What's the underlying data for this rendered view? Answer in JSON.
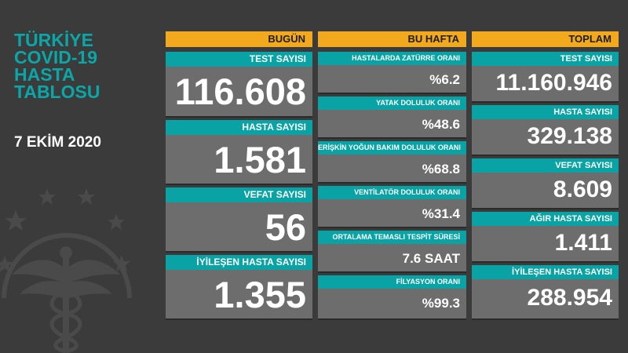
{
  "title_lines": [
    "TÜRKİYE",
    "COVID-19",
    "HASTA",
    "TABLOSU"
  ],
  "date": "7 EKİM 2020",
  "columns": {
    "today": {
      "header": "BUGÜN",
      "items": [
        {
          "label": "TEST SAYISI",
          "value": "116.608"
        },
        {
          "label": "HASTA SAYISI",
          "value": "1.581"
        },
        {
          "label": "VEFAT SAYISI",
          "value": "56"
        },
        {
          "label": "İYİLEŞEN HASTA SAYISI",
          "value": "1.355"
        }
      ]
    },
    "week": {
      "header": "BU HAFTA",
      "items": [
        {
          "label": "HASTALARDA ZATÜRRE ORANI",
          "value": "%6.2"
        },
        {
          "label": "YATAK DOLULUK ORANI",
          "value": "%48.6"
        },
        {
          "label": "ERİŞKİN YOĞUN BAKIM DOLULUK ORANI",
          "value": "%68.8"
        },
        {
          "label": "VENTİLATÖR DOLULUK ORANI",
          "value": "%31.4"
        },
        {
          "label": "ORTALAMA TEMASLI TESPİT SÜRESİ",
          "value": "7.6 SAAT"
        },
        {
          "label": "FİLYASYON ORANI",
          "value": "%99.3"
        }
      ]
    },
    "total": {
      "header": "TOPLAM",
      "items": [
        {
          "label": "TEST SAYISI",
          "value": "11.160.946"
        },
        {
          "label": "HASTA SAYISI",
          "value": "329.138"
        },
        {
          "label": "VEFAT SAYISI",
          "value": "8.609"
        },
        {
          "label": "AĞIR HASTA SAYISI",
          "value": "1.411"
        },
        {
          "label": "İYİLEŞEN HASTA SAYISI",
          "value": "288.954"
        }
      ]
    }
  },
  "colors": {
    "header_bg": "#f2a91d",
    "label_bg": "#0aa3a5",
    "card_bg": "#6d6d6d",
    "page_bg": "#3b3b3b",
    "title_color": "#0aa7a9"
  },
  "icons": [
    "ministry-emblem-icon"
  ]
}
